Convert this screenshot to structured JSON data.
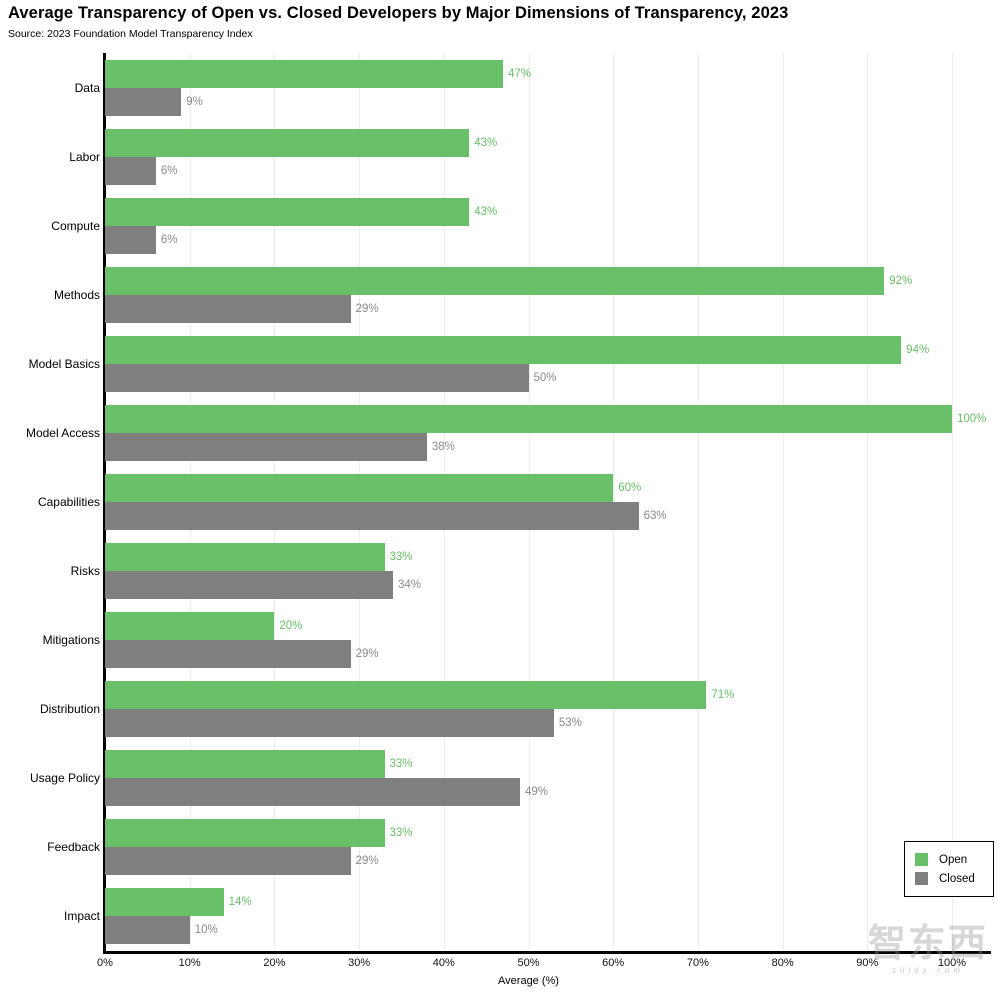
{
  "header": {
    "title": "Average Transparency of Open vs. Closed Developers by Major Dimensions of Transparency, 2023",
    "source": "Source: 2023 Foundation Model Transparency Index"
  },
  "chart_data": {
    "type": "bar",
    "orientation": "horizontal",
    "title": "Average Transparency of Open vs. Closed Developers by Major Dimensions of Transparency, 2023",
    "subtitle": "Source: 2023 Foundation Model Transparency Index",
    "categories": [
      "Data",
      "Labor",
      "Compute",
      "Methods",
      "Model Basics",
      "Model Access",
      "Capabilities",
      "Risks",
      "Mitigations",
      "Distribution",
      "Usage Policy",
      "Feedback",
      "Impact"
    ],
    "series": [
      {
        "name": "Open",
        "color": "#6abf69",
        "values": [
          47,
          43,
          43,
          92,
          94,
          100,
          60,
          33,
          20,
          71,
          33,
          33,
          14
        ]
      },
      {
        "name": "Closed",
        "color": "#7f7f7f",
        "values": [
          9,
          6,
          6,
          29,
          50,
          38,
          63,
          34,
          29,
          53,
          49,
          29,
          10
        ]
      }
    ],
    "value_label_suffix": "%",
    "value_label_colors": {
      "open": "#6abf69",
      "closed": "#8a8a8a"
    },
    "xlabel": "Average (%)",
    "x_ticks": [
      "0%",
      "10%",
      "20%",
      "30%",
      "40%",
      "50%",
      "60%",
      "70%",
      "80%",
      "90%",
      "100%"
    ],
    "xlim": [
      0,
      104.5
    ],
    "grid": "vertical",
    "grid_color": "#ececec",
    "legend_position": "bottom-right"
  },
  "legend": {
    "items": [
      {
        "label": "Open",
        "color": "#6abf69"
      },
      {
        "label": "Closed",
        "color": "#7f7f7f"
      }
    ]
  },
  "watermark": {
    "text": "智东西",
    "subtext": "zhidx.com"
  },
  "colors": {
    "open": "#6abf69",
    "closed": "#7f7f7f",
    "axis": "#000000",
    "grid": "#ececec",
    "background": "#ffffff"
  }
}
